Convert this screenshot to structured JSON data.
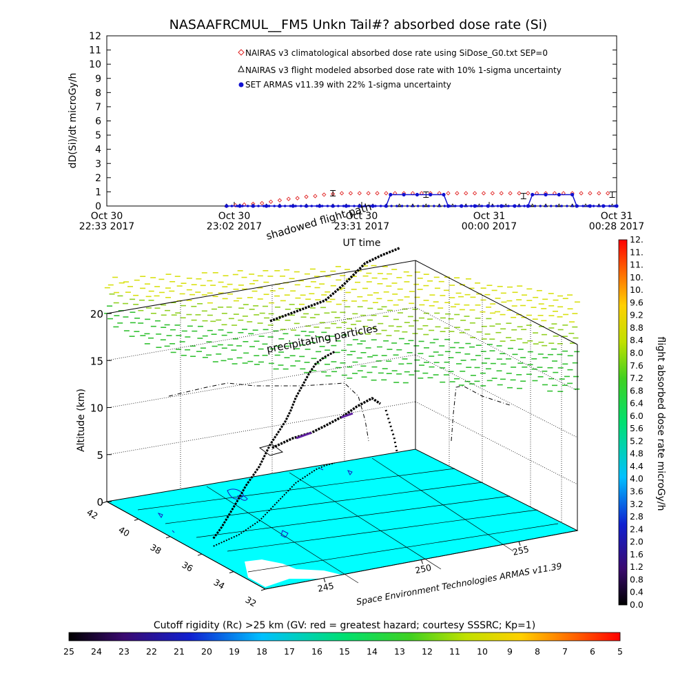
{
  "title": "NASAAFRCMUL__FM5 Unkn Tail#? absorbed dose rate (Si)",
  "colors": {
    "nairas_climatological": "#e02020",
    "nairas_flight": "#000000",
    "armas": "#1010d0",
    "ground": "#00ffff",
    "flight_track": "#000000"
  },
  "chart_data": [
    {
      "type": "line",
      "title": "NASAAFRCMUL__FM5 Unkn Tail#? absorbed dose rate (Si)",
      "ylabel": "dD(Si)/dt microGy/h",
      "xlabel": "UT time",
      "ylim": [
        0,
        12
      ],
      "yticks": [
        "0",
        "1",
        "2",
        "3",
        "4",
        "5",
        "6",
        "7",
        "8",
        "9",
        "10",
        "11",
        "12"
      ],
      "xticks": [
        {
          "line1": "Oct 30",
          "line2": "22:33 2017"
        },
        {
          "line1": "Oct 30",
          "line2": "23:02 2017"
        },
        {
          "line1": "Oct 30",
          "line2": "23:31 2017"
        },
        {
          "line1": "Oct 31",
          "line2": "00:00 2017"
        },
        {
          "line1": "Oct 31",
          "line2": "00:28 2017"
        }
      ],
      "xlim_minutes": [
        0,
        115
      ],
      "legend_placement": "top-right",
      "series": [
        {
          "name": "NAIRAS v3 climatological absorbed dose rate using SiDose_G0.txt SEP=0",
          "marker": "diamond",
          "x_minutes": [
            27,
            29,
            31,
            33,
            35,
            37,
            39,
            41,
            43,
            45,
            47,
            49,
            51,
            53,
            55,
            57,
            59,
            61,
            63,
            65,
            67,
            69,
            71,
            73,
            75,
            77,
            79,
            81,
            83,
            85,
            87,
            89,
            91,
            93,
            95,
            97,
            99,
            101,
            103,
            105,
            107,
            109,
            111,
            113
          ],
          "values": [
            0.0,
            0.05,
            0.1,
            0.15,
            0.2,
            0.3,
            0.4,
            0.5,
            0.55,
            0.65,
            0.7,
            0.8,
            0.85,
            0.9,
            0.9,
            0.9,
            0.9,
            0.9,
            0.9,
            0.9,
            0.9,
            0.9,
            0.9,
            0.9,
            0.9,
            0.9,
            0.9,
            0.9,
            0.9,
            0.9,
            0.9,
            0.9,
            0.9,
            0.9,
            0.9,
            0.9,
            0.9,
            0.9,
            0.9,
            0.9,
            0.9,
            0.9,
            0.9,
            0.9
          ]
        },
        {
          "name": "NAIRAS v3 flight modeled absorbed dose rate with 10% 1-sigma uncertainty",
          "marker": "triangle",
          "x_minutes": [
            27,
            30,
            33,
            36,
            39,
            42,
            45,
            48,
            51,
            54,
            57,
            60,
            63,
            66,
            69,
            72,
            75,
            78,
            81,
            84,
            87,
            90,
            93,
            96,
            99,
            102,
            105,
            108,
            111,
            114
          ],
          "values": [
            0,
            0,
            0,
            0,
            0,
            0,
            0,
            0,
            0,
            0,
            0,
            0,
            0,
            0,
            0,
            0,
            0,
            0,
            0,
            0,
            0,
            0,
            0,
            0,
            0,
            0,
            0,
            0,
            0,
            0
          ],
          "error_bars": [
            {
              "x_minutes": 51,
              "value": 0.9
            },
            {
              "x_minutes": 72,
              "value": 0.8
            },
            {
              "x_minutes": 94,
              "value": 0.7
            },
            {
              "x_minutes": 114,
              "value": 0.8
            }
          ]
        },
        {
          "name": "SET ARMAS v11.39 with 22% 1-sigma uncertainty",
          "marker": "circle",
          "x_minutes": [
            27,
            30,
            33,
            36,
            39,
            42,
            45,
            48,
            51,
            54,
            57,
            60,
            63,
            64,
            67,
            70,
            73,
            76,
            77,
            80,
            83,
            86,
            89,
            92,
            95,
            96,
            99,
            102,
            105,
            106,
            109,
            112,
            115
          ],
          "values": [
            0,
            0,
            0,
            0,
            0,
            0,
            0,
            0,
            0,
            0,
            0,
            0,
            0,
            0.8,
            0.8,
            0.8,
            0.8,
            0.8,
            0,
            0,
            0,
            0,
            0,
            0,
            0,
            0.8,
            0.8,
            0.8,
            0.8,
            0,
            0,
            0,
            0
          ]
        }
      ]
    },
    {
      "type": "scatter",
      "subtype": "3d_flight_track",
      "zlabel": "Altitude (km)",
      "zlim": [
        0,
        20
      ],
      "zticks": [
        "0",
        "5",
        "10",
        "15",
        "20"
      ],
      "lat_ticks": [
        "32",
        "34",
        "36",
        "38",
        "40",
        "42"
      ],
      "lon_ticks": [
        "245",
        "250",
        "255"
      ],
      "lat_range": [
        32,
        42
      ],
      "lon_range": [
        242,
        258
      ],
      "annotations": [
        "shadowed flight path",
        "precipitating particles"
      ],
      "credit": "Space Environment Technologies ARMAS v11.39",
      "track": {
        "lon": [
          243.0,
          243.6,
          244.2,
          244.8,
          245.4,
          246.0,
          246.6,
          247.2,
          247.8,
          248.4,
          249.0,
          249.6,
          250.2,
          250.8,
          251.4,
          252.0,
          252.6,
          253.2,
          253.8
        ],
        "lat": [
          36.5,
          36.7,
          36.9,
          37.1,
          37.4,
          37.7,
          38.0,
          38.4,
          38.8,
          39.2,
          39.6,
          40.0,
          40.4,
          40.8,
          41.1,
          41.4,
          41.7,
          41.9,
          42.0
        ],
        "alt_km": [
          1.5,
          3.0,
          5.0,
          7.0,
          8.5,
          9.5,
          10.5,
          11.5,
          12.5,
          13.0,
          13.5,
          14.0,
          15.0,
          16.5,
          18.0,
          19.5,
          20.5,
          21.0,
          21.5
        ]
      }
    },
    {
      "type": "colorbar",
      "label": "flight absorbed dose rate microGy/h",
      "ticks": [
        "0.0",
        "0.4",
        "0.8",
        "1.2",
        "1.6",
        "2.0",
        "2.4",
        "2.8",
        "3.2",
        "3.6",
        "4.0",
        "4.4",
        "4.8",
        "5.2",
        "5.6",
        "6.0",
        "6.4",
        "6.8",
        "7.2",
        "7.6",
        "8.0",
        "8.4",
        "8.8",
        "9.2",
        "9.6",
        "10.",
        "10.",
        "11.",
        "11.",
        "12."
      ]
    },
    {
      "type": "colorbar",
      "label": "Cutoff rigidity (Rc) >25 km (GV: red = greatest hazard; courtesy SSSRC; Kp=1)",
      "ticks": [
        "25",
        "24",
        "23",
        "22",
        "21",
        "20",
        "19",
        "18",
        "17",
        "16",
        "15",
        "14",
        "13",
        "12",
        "11",
        "10",
        "9",
        "8",
        "7",
        "6",
        "5"
      ]
    }
  ]
}
